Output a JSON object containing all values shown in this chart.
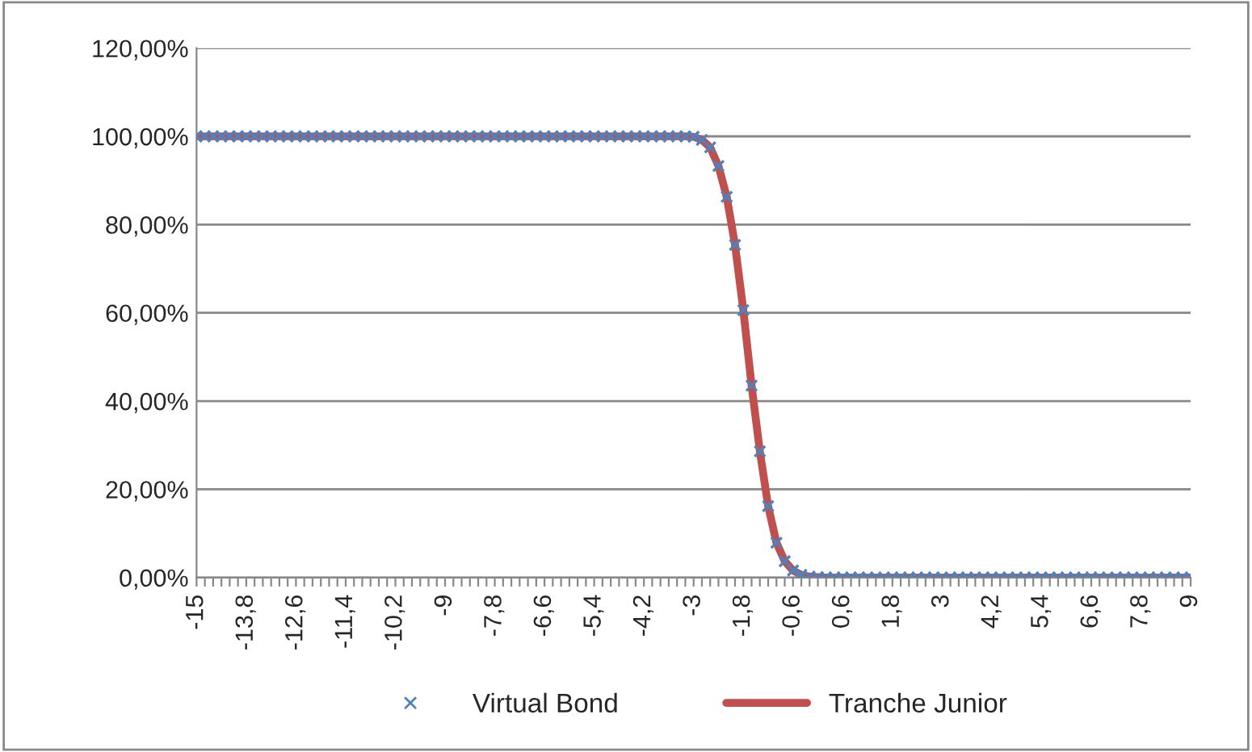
{
  "chart_data": {
    "type": "line",
    "categories": [
      "-15",
      null,
      null,
      null,
      null,
      null,
      "-13,8",
      null,
      null,
      null,
      null,
      null,
      "-12,6",
      null,
      null,
      null,
      null,
      null,
      "-11,4",
      null,
      null,
      null,
      null,
      null,
      "-10,2",
      null,
      null,
      null,
      null,
      null,
      "-9",
      null,
      null,
      null,
      null,
      null,
      "-7,8",
      null,
      null,
      null,
      null,
      null,
      "-6,6",
      null,
      null,
      null,
      null,
      null,
      "-5,4",
      null,
      null,
      null,
      null,
      null,
      "-4,2",
      null,
      null,
      null,
      null,
      null,
      "-3",
      null,
      null,
      null,
      null,
      null,
      "-1,8",
      null,
      null,
      null,
      null,
      null,
      "-0,6",
      null,
      null,
      null,
      null,
      null,
      "0,6",
      null,
      null,
      null,
      null,
      null,
      "1,8",
      null,
      null,
      null,
      null,
      null,
      "3",
      null,
      null,
      null,
      null,
      null,
      "4,2",
      null,
      null,
      null,
      null,
      null,
      "5,4",
      null,
      null,
      null,
      null,
      null,
      "6,6",
      null,
      null,
      null,
      null,
      null,
      "7,8",
      null,
      null,
      null,
      null,
      null,
      "9"
    ],
    "series": [
      {
        "name": "Virtual Bond",
        "type": "scatter",
        "marker": "cross",
        "color": "#4f81bd",
        "values": [
          100,
          100,
          100,
          100,
          100,
          100,
          100,
          100,
          100,
          100,
          100,
          100,
          100,
          100,
          100,
          100,
          100,
          100,
          100,
          100,
          100,
          100,
          100,
          100,
          100,
          100,
          100,
          100,
          100,
          100,
          100,
          100,
          100,
          100,
          100,
          100,
          100,
          100,
          100,
          100,
          100,
          100,
          100,
          100,
          100,
          100,
          100,
          100,
          100,
          100,
          100,
          100,
          100,
          100,
          100,
          100,
          100,
          100,
          100,
          100,
          99.9,
          99.2,
          97.5,
          93.3,
          86.3,
          75.4,
          60.6,
          43.5,
          28.6,
          16.2,
          7.9,
          3.7,
          1.6,
          0.6,
          0.2,
          0.1,
          0,
          0,
          0,
          0,
          0,
          0,
          0,
          0,
          0,
          0,
          0,
          0,
          0,
          0,
          0,
          0,
          0,
          0,
          0,
          0,
          0,
          0,
          0,
          0,
          0,
          0,
          0,
          0,
          0,
          0,
          0,
          0,
          0,
          0,
          0,
          0,
          0,
          0,
          0,
          0,
          0,
          0,
          0,
          0,
          0
        ]
      },
      {
        "name": "Tranche Junior",
        "marker": "none",
        "line_style": "solid",
        "color": "#c0504d",
        "values": [
          100,
          100,
          100,
          100,
          100,
          100,
          100,
          100,
          100,
          100,
          100,
          100,
          100,
          100,
          100,
          100,
          100,
          100,
          100,
          100,
          100,
          100,
          100,
          100,
          100,
          100,
          100,
          100,
          100,
          100,
          100,
          100,
          100,
          100,
          100,
          100,
          100,
          100,
          100,
          100,
          100,
          100,
          100,
          100,
          100,
          100,
          100,
          100,
          100,
          100,
          100,
          100,
          100,
          100,
          100,
          100,
          100,
          100,
          100,
          100,
          99.9,
          99.2,
          97.5,
          93.3,
          86.3,
          75.4,
          60.6,
          43.5,
          28.6,
          16.2,
          7.9,
          3.7,
          1.6,
          0.6,
          0.2,
          0.1,
          0,
          0,
          0,
          0,
          0,
          0,
          0,
          0,
          0,
          0,
          0,
          0,
          0,
          0,
          0,
          0,
          0,
          0,
          0,
          0,
          0,
          0,
          0,
          0,
          0,
          0,
          0,
          0,
          0,
          0,
          0,
          0,
          0,
          0,
          0,
          0,
          0,
          0,
          0,
          0,
          0,
          0,
          0,
          0,
          0
        ]
      }
    ],
    "ylim": [
      0,
      120
    ],
    "yticks": [
      {
        "value": 0,
        "label": "0,00%"
      },
      {
        "value": 20,
        "label": "20,00%"
      },
      {
        "value": 40,
        "label": "40,00%"
      },
      {
        "value": 60,
        "label": "60,00%"
      },
      {
        "value": 80,
        "label": "80,00%"
      },
      {
        "value": 100,
        "label": "100,00%"
      },
      {
        "value": 120,
        "label": "120,00%"
      }
    ],
    "grid": "y",
    "legend": "bottom"
  }
}
